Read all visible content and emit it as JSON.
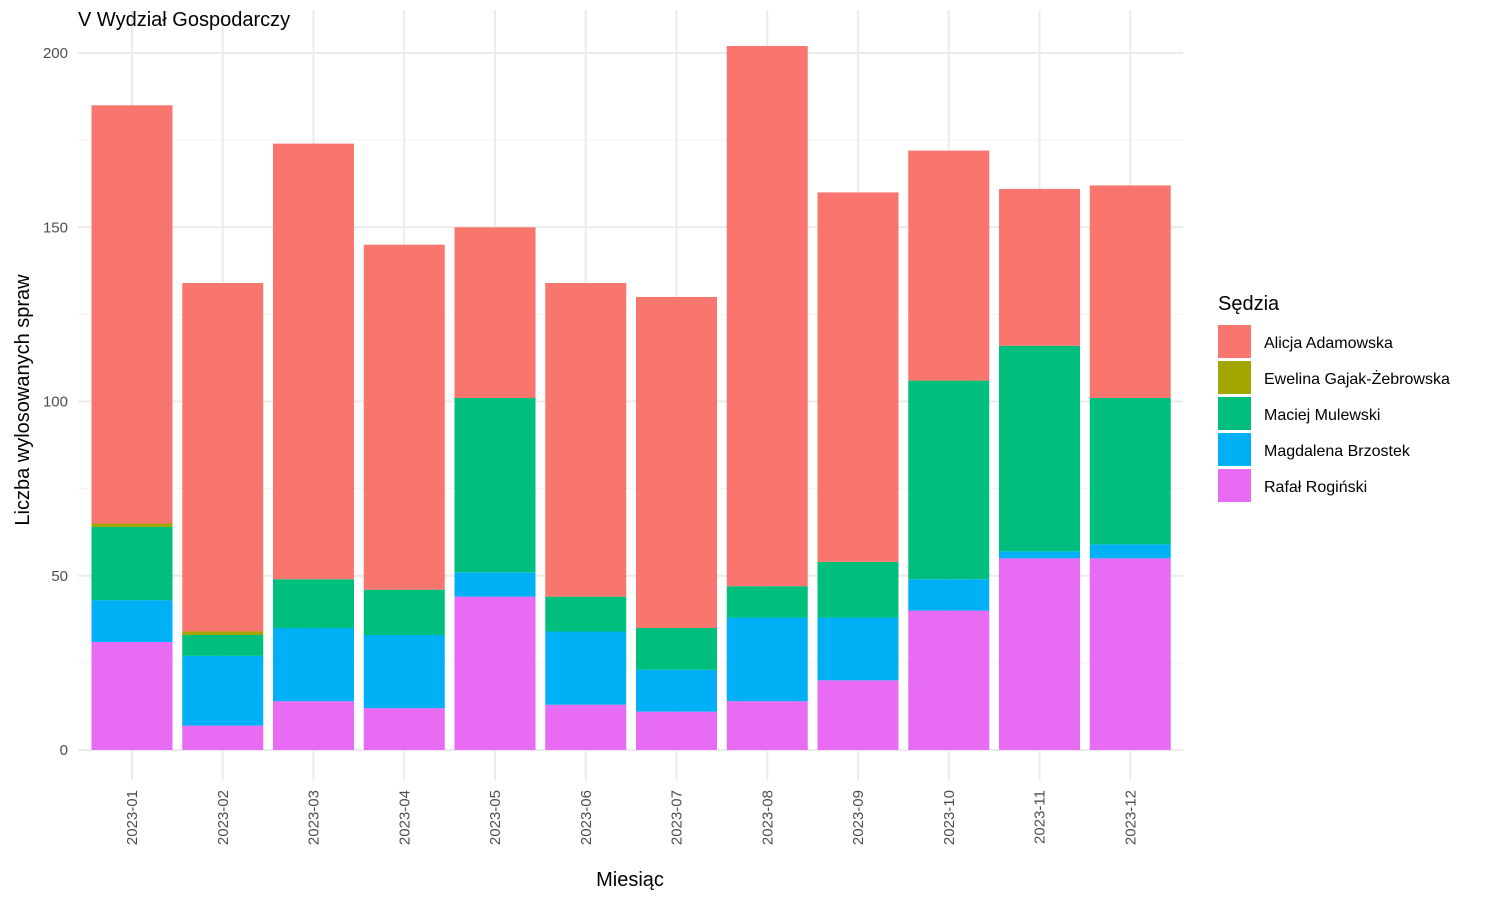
{
  "chart_data": {
    "type": "bar",
    "stacked": true,
    "title": "V Wydział Gospodarczy",
    "xlabel": "Miesiąc",
    "ylabel": "Liczba wylosowanych spraw",
    "ylim": [
      0,
      210
    ],
    "yticks": [
      0,
      50,
      100,
      150,
      200
    ],
    "grid": true,
    "legend_title": "Sędzia",
    "legend_position": "right",
    "categories": [
      "2023-01",
      "2023-02",
      "2023-03",
      "2023-04",
      "2023-05",
      "2023-06",
      "2023-07",
      "2023-08",
      "2023-09",
      "2023-10",
      "2023-11",
      "2023-12"
    ],
    "series": [
      {
        "name": "Rafał Rogiński",
        "color": "#E76BF3",
        "values": [
          31,
          7,
          14,
          12,
          44,
          13,
          11,
          14,
          20,
          40,
          55,
          55
        ]
      },
      {
        "name": "Magdalena Brzostek",
        "color": "#00B0F6",
        "values": [
          12,
          20,
          21,
          21,
          7,
          21,
          12,
          24,
          18,
          9,
          2,
          4
        ]
      },
      {
        "name": "Maciej Mulewski",
        "color": "#00BF7D",
        "values": [
          21,
          6,
          14,
          13,
          50,
          10,
          12,
          9,
          16,
          57,
          59,
          42
        ]
      },
      {
        "name": "Ewelina Gajak-Żebrowska",
        "color": "#A3A500",
        "values": [
          1,
          1,
          0,
          0,
          0,
          0,
          0,
          0,
          0,
          0,
          0,
          0
        ]
      },
      {
        "name": "Alicja Adamowska",
        "color": "#F8766D",
        "values": [
          120,
          100,
          125,
          99,
          49,
          90,
          95,
          155,
          106,
          66,
          45,
          61
        ]
      }
    ],
    "legend_order": [
      "Alicja Adamowska",
      "Ewelina Gajak-Żebrowska",
      "Maciej Mulewski",
      "Magdalena Brzostek",
      "Rafał Rogiński"
    ]
  }
}
